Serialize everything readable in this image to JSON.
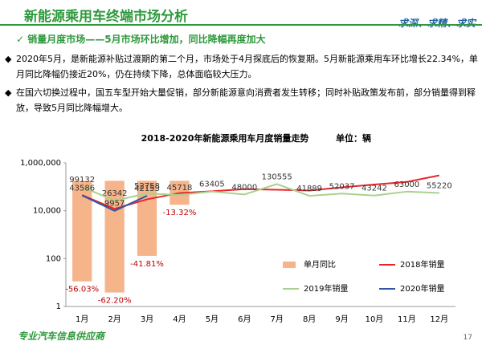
{
  "header": {
    "title": "新能源乘用车终端市场分析",
    "slogan": "求深、求精、求实"
  },
  "subtitle": "销量月度市场——5月市场环比增加，同比降幅再度加大",
  "bullets": [
    "2020年5月，是新能源补贴过渡期的第二个月，市场处于4月探底后的恢复期。5月新能源乘用车环比增长22.34%，单月同比降幅仍接近20%，仍在持续下降，总体面临较大压力。",
    "在国六切换过程中，国五车型开始大量促销，部分新能源意向消费者发生转移；同时补贴政策发布前，部分销量得到释放，导致5月同比降幅增大。"
  ],
  "chart_data": {
    "type": "combo",
    "title": "2018-2020年新能源乘用车月度销量走势",
    "unit": "单位：辆",
    "categories": [
      "1月",
      "2月",
      "3月",
      "4月",
      "5月",
      "6月",
      "7月",
      "8月",
      "9月",
      "10月",
      "11月",
      "12月"
    ],
    "log_y": true,
    "ylim": [
      1,
      1000000
    ],
    "yticks": [
      1,
      100,
      {
        "value": 10000,
        "label": "10,000"
      },
      {
        "value": 1000000,
        "label": "1,000,000"
      }
    ],
    "y2lim": [
      -70,
      10
    ],
    "series": [
      {
        "name": "单月同比",
        "kind": "bar",
        "axis": "y2",
        "color": "#f5b48a",
        "values": [
          -56.03,
          -62.2,
          -41.81,
          -13.32,
          null,
          null,
          null,
          null,
          null,
          null,
          null,
          null
        ],
        "value_labels": [
          "-56.03%",
          "-62.20%",
          "-41.81%",
          "-13.32%",
          null,
          null,
          null,
          null,
          null,
          null,
          null,
          null
        ]
      },
      {
        "name": "2018年销量",
        "kind": "line",
        "color": "#e8262a",
        "values": [
          45000,
          12000,
          30000,
          55000,
          65000,
          80000,
          75000,
          70000,
          95000,
          125000,
          160000,
          300000
        ]
      },
      {
        "name": "2019年销量",
        "kind": "line",
        "color": "#a9d18e",
        "data_labels": true,
        "values": [
          99132,
          26342,
          52758,
          45718,
          63405,
          48000,
          130555,
          41889,
          52037,
          43242,
          63000,
          55220
        ]
      },
      {
        "name": "2020年销量",
        "kind": "line",
        "color": "#2f55a4",
        "data_labels": true,
        "values": [
          43586,
          9957,
          42153,
          null,
          null,
          null,
          null,
          null,
          null,
          null,
          null,
          null
        ]
      }
    ]
  },
  "footer": {
    "text": "专业汽车信息供应商",
    "page": 17
  }
}
